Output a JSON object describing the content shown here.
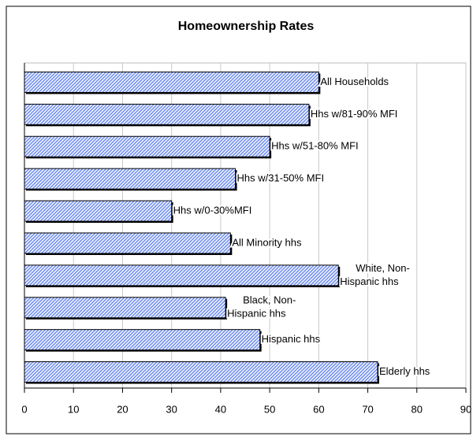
{
  "chart_data": {
    "type": "bar",
    "orientation": "horizontal",
    "title": "Homeownership Rates",
    "categories": [
      [
        "All Households"
      ],
      [
        "Hhs w/81-90% MFI"
      ],
      [
        "Hhs w/51-80% MFI"
      ],
      [
        "Hhs w/31-50% MFI"
      ],
      [
        "Hhs w/0-30%MFI"
      ],
      [
        "All Minority hhs"
      ],
      [
        "White, Non-",
        "Hispanic hhs"
      ],
      [
        "Black, Non-",
        "Hispanic hhs"
      ],
      [
        "Hispanic hhs"
      ],
      [
        "Elderly hhs"
      ]
    ],
    "values": [
      60,
      58,
      50,
      43,
      30,
      42,
      64,
      41,
      48,
      72
    ],
    "color": "#8fa8f5",
    "xlim": [
      0,
      90
    ],
    "xticks": [
      0,
      10,
      20,
      30,
      40,
      50,
      60,
      70,
      80,
      90
    ],
    "grid": true
  }
}
